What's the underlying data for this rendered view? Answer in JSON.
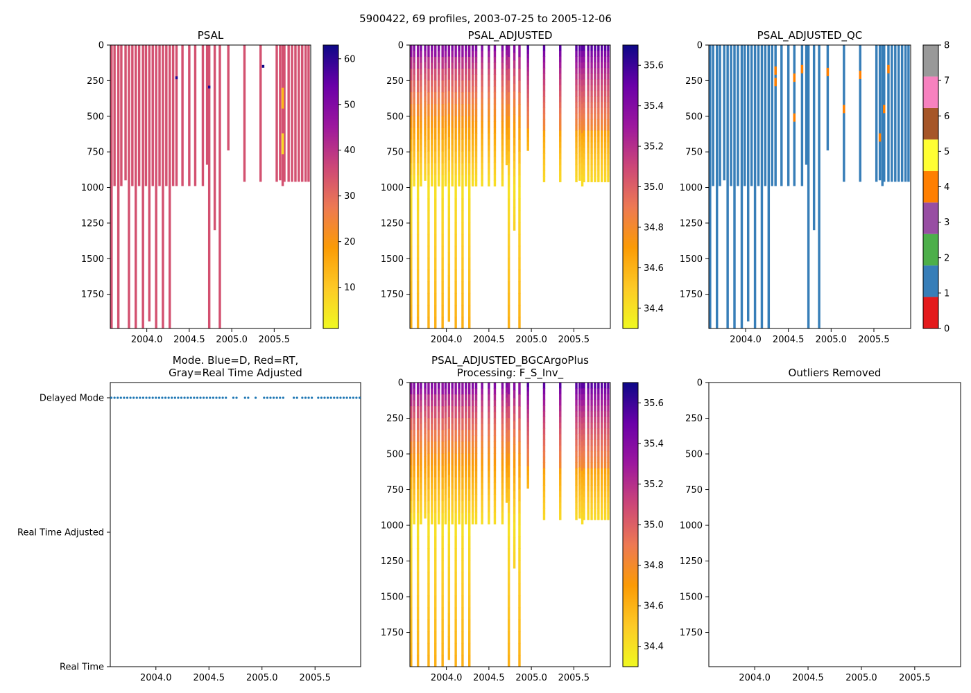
{
  "figure": {
    "title": "5900422, 69 profiles, 2003-07-25 to 2005-12-06"
  },
  "colors": {
    "qc": [
      "#e41a1c",
      "#377eb8",
      "#4daf4a",
      "#984ea3",
      "#ff7f00",
      "#ffff33",
      "#a65628",
      "#f781bf",
      "#999999"
    ],
    "mode_point": "#1f77b4"
  },
  "chart_data": [
    {
      "id": "psal",
      "type": "heatmap",
      "title": "PSAL",
      "title2": "",
      "xlim": [
        2003.57,
        2005.93
      ],
      "ylim": [
        1990,
        0
      ],
      "xticks": [
        "2004.0",
        "2004.5",
        "2005.0",
        "2005.5"
      ],
      "yticks": [
        "0",
        "250",
        "500",
        "750",
        "1000",
        "1250",
        "1500",
        "1750"
      ],
      "colorscale": "plasma_r",
      "clim": [
        1,
        63
      ],
      "cbar_ticks": [
        "10",
        "20",
        "30",
        "40",
        "50",
        "60"
      ],
      "note": "Nearly all values ~34-35 PSU; isolated spikes of ~60 near 2004.7 and 2005.35; orange values near 2005.6 at 300-650 dbar"
    },
    {
      "id": "psal_adj",
      "type": "heatmap",
      "title": "PSAL_ADJUSTED",
      "title2": "",
      "xlim": [
        2003.57,
        2005.93
      ],
      "ylim": [
        1990,
        0
      ],
      "xticks": [
        "2004.0",
        "2004.5",
        "2005.0",
        "2005.5"
      ],
      "yticks": [
        "0",
        "250",
        "500",
        "750",
        "1000",
        "1250",
        "1500",
        "1750"
      ],
      "colorscale": "plasma_r",
      "clim": [
        34.3,
        35.7
      ],
      "cbar_ticks": [
        "34.4",
        "34.6",
        "34.8",
        "35.0",
        "35.2",
        "35.4",
        "35.6"
      ]
    },
    {
      "id": "psal_adj_qc",
      "type": "heatmap",
      "title": "PSAL_ADJUSTED_QC",
      "title2": "",
      "xlim": [
        2003.57,
        2005.93
      ],
      "ylim": [
        1990,
        0
      ],
      "xticks": [
        "2004.0",
        "2004.5",
        "2005.0",
        "2005.5"
      ],
      "yticks": [
        "0",
        "250",
        "500",
        "750",
        "1000",
        "1250",
        "1500",
        "1750"
      ],
      "colorscale": "qc",
      "clim": [
        0,
        8
      ],
      "cbar_ticks": [
        "0",
        "1",
        "2",
        "3",
        "4",
        "5",
        "6",
        "7",
        "8"
      ],
      "note": "Mostly QC 1; small QC 4 segments"
    },
    {
      "id": "mode",
      "type": "scatter",
      "title": "Mode. Blue=D, Red=RT,",
      "title2": "Gray=Real Time Adjusted",
      "xlim": [
        2003.57,
        2005.93
      ],
      "xticks": [
        "2004.0",
        "2004.5",
        "2005.0",
        "2005.5"
      ],
      "ycategories": [
        "Real Time",
        "Real Time Adjusted",
        "Delayed Mode"
      ],
      "y_value": "Delayed Mode",
      "x": [
        2003.58,
        2003.61,
        2003.64,
        2003.67,
        2003.7,
        2003.73,
        2003.76,
        2003.79,
        2003.82,
        2003.85,
        2003.88,
        2003.91,
        2003.94,
        2003.97,
        2004.0,
        2004.03,
        2004.06,
        2004.09,
        2004.12,
        2004.15,
        2004.18,
        2004.21,
        2004.24,
        2004.27,
        2004.3,
        2004.33,
        2004.36,
        2004.39,
        2004.42,
        2004.45,
        2004.48,
        2004.51,
        2004.54,
        2004.57,
        2004.6,
        2004.63,
        2004.66,
        2004.73,
        2004.76,
        2004.84,
        2004.87,
        2004.94,
        2005.02,
        2005.05,
        2005.08,
        2005.11,
        2005.14,
        2005.17,
        2005.2,
        2005.3,
        2005.33,
        2005.38,
        2005.41,
        2005.44,
        2005.47,
        2005.53,
        2005.56,
        2005.59,
        2005.62,
        2005.65,
        2005.68,
        2005.71,
        2005.74,
        2005.77,
        2005.8,
        2005.83,
        2005.86,
        2005.89,
        2005.92
      ]
    },
    {
      "id": "psal_plus",
      "type": "heatmap",
      "title": "PSAL_ADJUSTED_BGCArgoPlus",
      "title2": "Processing: F_S_Inv_",
      "xlim": [
        2003.57,
        2005.93
      ],
      "ylim": [
        1990,
        0
      ],
      "xticks": [
        "2004.0",
        "2004.5",
        "2005.0",
        "2005.5"
      ],
      "yticks": [
        "0",
        "250",
        "500",
        "750",
        "1000",
        "1250",
        "1500",
        "1750"
      ],
      "colorscale": "plasma_r",
      "clim": [
        34.3,
        35.7
      ],
      "cbar_ticks": [
        "34.4",
        "34.6",
        "34.8",
        "35.0",
        "35.2",
        "35.4",
        "35.6"
      ]
    },
    {
      "id": "outliers",
      "type": "heatmap",
      "title": "Outliers Removed",
      "title2": "",
      "xlim": [
        2003.57,
        2005.93
      ],
      "ylim": [
        1990,
        0
      ],
      "xticks": [
        "2004.0",
        "2004.5",
        "2005.0",
        "2005.5"
      ],
      "yticks": [
        "0",
        "250",
        "500",
        "750",
        "1000",
        "1250",
        "1500",
        "1750"
      ],
      "empty": true
    }
  ],
  "profiles": [
    {
      "t": 2003.585,
      "bot": 1990
    },
    {
      "t": 2003.62,
      "bot": 990
    },
    {
      "t": 2003.665,
      "bot": 1990
    },
    {
      "t": 2003.7,
      "bot": 990
    },
    {
      "t": 2003.75,
      "bot": 950
    },
    {
      "t": 2003.79,
      "bot": 1990
    },
    {
      "t": 2003.83,
      "bot": 990
    },
    {
      "t": 2003.87,
      "bot": 1990
    },
    {
      "t": 2003.91,
      "bot": 990
    },
    {
      "t": 2003.955,
      "bot": 1990
    },
    {
      "t": 2003.99,
      "bot": 990
    },
    {
      "t": 2004.03,
      "bot": 1940
    },
    {
      "t": 2004.07,
      "bot": 990
    },
    {
      "t": 2004.11,
      "bot": 1990
    },
    {
      "t": 2004.15,
      "bot": 990
    },
    {
      "t": 2004.19,
      "bot": 1990
    },
    {
      "t": 2004.23,
      "bot": 990
    },
    {
      "t": 2004.27,
      "bot": 1990
    },
    {
      "t": 2004.31,
      "bot": 990
    },
    {
      "t": 2004.35,
      "bot": 990
    },
    {
      "t": 2004.42,
      "bot": 990
    },
    {
      "t": 2004.5,
      "bot": 990
    },
    {
      "t": 2004.57,
      "bot": 990
    },
    {
      "t": 2004.66,
      "bot": 990
    },
    {
      "t": 2004.71,
      "bot": 840
    },
    {
      "t": 2004.735,
      "bot": 1990
    },
    {
      "t": 2004.8,
      "bot": 1300
    },
    {
      "t": 2004.86,
      "bot": 1990
    },
    {
      "t": 2004.96,
      "bot": 740
    },
    {
      "t": 2005.15,
      "bot": 960
    },
    {
      "t": 2005.34,
      "bot": 960
    },
    {
      "t": 2005.53,
      "bot": 960
    },
    {
      "t": 2005.57,
      "bot": 950
    },
    {
      "t": 2005.6,
      "bot": 990
    },
    {
      "t": 2005.62,
      "bot": 960
    },
    {
      "t": 2005.67,
      "bot": 960
    },
    {
      "t": 2005.71,
      "bot": 960
    },
    {
      "t": 2005.75,
      "bot": 960
    },
    {
      "t": 2005.79,
      "bot": 960
    },
    {
      "t": 2005.83,
      "bot": 960
    },
    {
      "t": 2005.87,
      "bot": 960
    },
    {
      "t": 2005.905,
      "bot": 960
    }
  ]
}
